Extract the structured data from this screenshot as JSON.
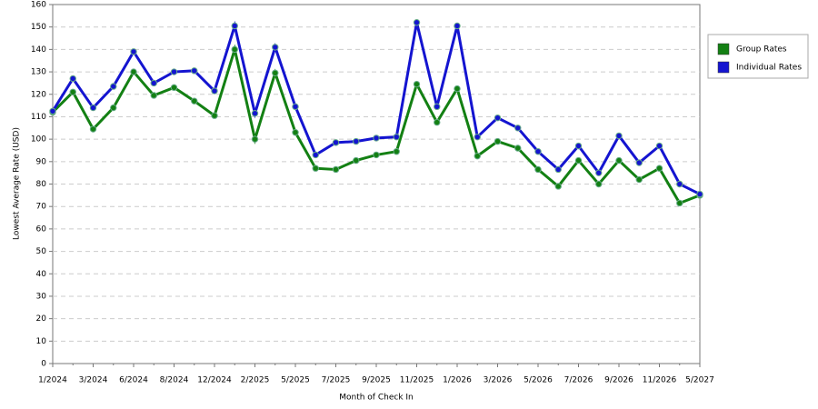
{
  "chart_data": {
    "type": "line",
    "x_label": "Month of Check In",
    "y_label": "Lowest Average Rate (USD)",
    "categories": [
      "1/2024",
      null,
      "3/2024",
      null,
      "6/2024",
      null,
      "8/2024",
      null,
      "12/2024",
      null,
      "2/2025",
      null,
      "5/2025",
      null,
      "7/2025",
      null,
      "9/2025",
      null,
      "11/2025",
      null,
      "1/2026",
      null,
      "3/2026",
      null,
      "5/2026",
      null,
      "7/2026",
      null,
      "9/2026",
      null,
      "11/2026",
      null,
      "5/2027"
    ],
    "series": [
      {
        "name": "Group Rates",
        "color": "#138013",
        "values": [
          112,
          121,
          104.5,
          114,
          130,
          119.5,
          123,
          117,
          110.5,
          140,
          100,
          129.5,
          103,
          87,
          86.5,
          90.5,
          93,
          94.5,
          124.5,
          107.5,
          122.5,
          92.5,
          99,
          96,
          86.5,
          79,
          90.5,
          80,
          90.5,
          82,
          87,
          71.5,
          75
        ]
      },
      {
        "name": "Individual Rates",
        "color": "#1414d0",
        "values": [
          112.5,
          127,
          114,
          123.5,
          139,
          125,
          130,
          130.5,
          121.5,
          150.5,
          111.5,
          141,
          114.5,
          93,
          98.5,
          99,
          100.5,
          101,
          152,
          114.5,
          150.5,
          101,
          109.5,
          105,
          94.5,
          86.5,
          97,
          85,
          101.5,
          89.5,
          97,
          80,
          75.5
        ]
      }
    ],
    "ylim": [
      0,
      160
    ],
    "yticks": [
      0,
      10,
      20,
      30,
      40,
      50,
      60,
      70,
      80,
      90,
      100,
      110,
      120,
      130,
      140,
      150,
      160
    ],
    "grid": true,
    "legend": "right"
  }
}
